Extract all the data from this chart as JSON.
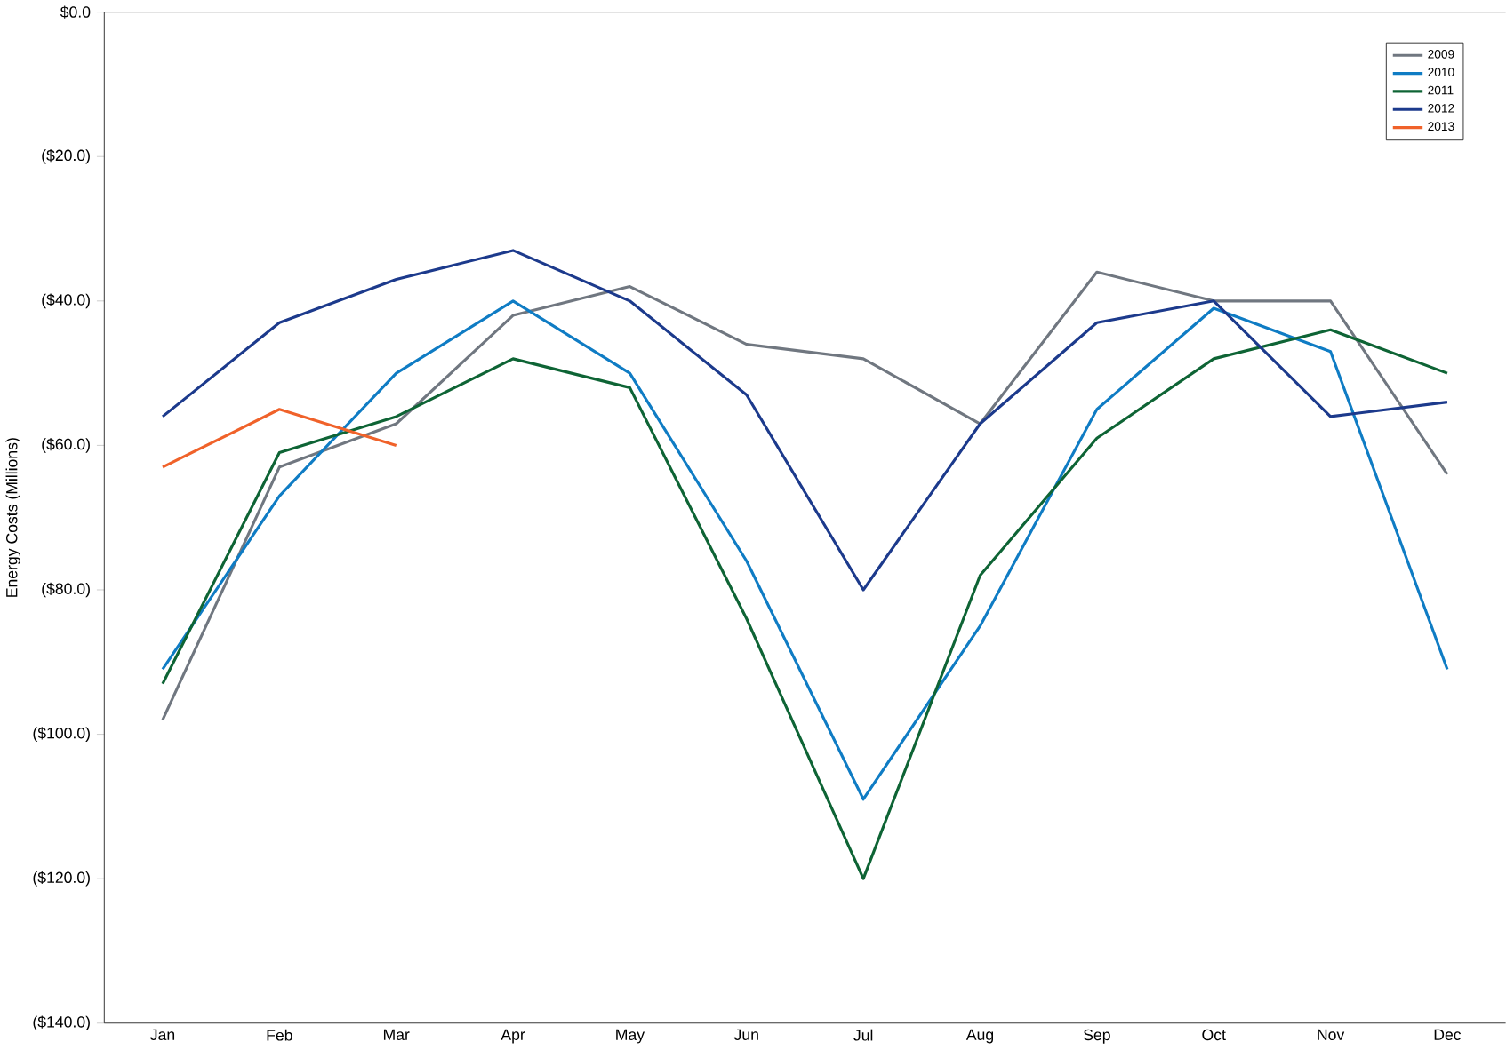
{
  "chart_data": {
    "type": "line",
    "ylabel": "Energy Costs (Millions)",
    "categories": [
      "Jan",
      "Feb",
      "Mar",
      "Apr",
      "May",
      "Jun",
      "Jul",
      "Aug",
      "Sep",
      "Oct",
      "Nov",
      "Dec"
    ],
    "series": [
      {
        "name": "2009",
        "color": "#707780",
        "values": [
          -98,
          -63,
          -57,
          -42,
          -38,
          -46,
          -48,
          -57,
          -36,
          -40,
          -40,
          -64
        ]
      },
      {
        "name": "2010",
        "color": "#0f7cc4",
        "values": [
          -91,
          -67,
          -50,
          -40,
          -50,
          -76,
          -109,
          -85,
          -55,
          -41,
          -47,
          -91
        ]
      },
      {
        "name": "2011",
        "color": "#0e6435",
        "values": [
          -93,
          -61,
          -56,
          -48,
          -52,
          -84,
          -120,
          -78,
          -59,
          -48,
          -44,
          -50
        ]
      },
      {
        "name": "2012",
        "color": "#1c3a8c",
        "values": [
          -56,
          -43,
          -37,
          -33,
          -40,
          -53,
          -80,
          -57,
          -43,
          -40,
          -56,
          -54
        ]
      },
      {
        "name": "2013",
        "color": "#f0622a",
        "values": [
          -63,
          -55,
          -60,
          null,
          null,
          null,
          null,
          null,
          null,
          null,
          null,
          null
        ]
      }
    ],
    "ylim": [
      -140,
      0
    ],
    "yticks": [
      {
        "value": -140,
        "label": "($140.0)"
      },
      {
        "value": -120,
        "label": "($120.0)"
      },
      {
        "value": -100,
        "label": "($100.0)"
      },
      {
        "value": -80,
        "label": "($80.0)"
      },
      {
        "value": -60,
        "label": "($60.0)"
      },
      {
        "value": -40,
        "label": "($40.0)"
      },
      {
        "value": -20,
        "label": "($20.0)"
      },
      {
        "value": 0,
        "label": "$0.0"
      }
    ],
    "grid": false,
    "legend": "top right",
    "marker": "none",
    "line_style": "solid"
  }
}
